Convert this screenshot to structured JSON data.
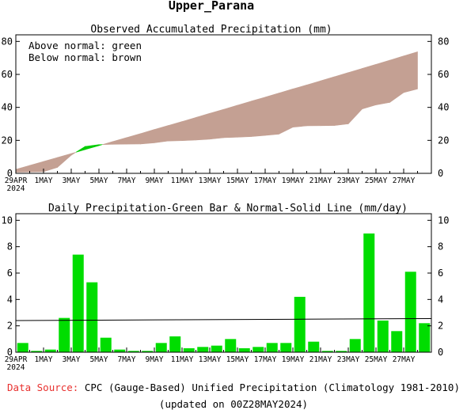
{
  "title": "Upper_Parana",
  "chart_data": [
    {
      "type": "area",
      "title": "Observed Accumulated Precipitation (mm)",
      "legend_lines": [
        "Above normal: green",
        "Below normal: brown"
      ],
      "ylim": [
        0,
        84
      ],
      "yticks": [
        0,
        20,
        40,
        60,
        80
      ],
      "x_tick_labels": [
        "29APR\n2024",
        "1MAY",
        "3MAY",
        "5MAY",
        "7MAY",
        "9MAY",
        "11MAY",
        "13MAY",
        "15MAY",
        "17MAY",
        "19MAY",
        "21MAY",
        "23MAY",
        "25MAY",
        "27MAY"
      ],
      "dates": [
        "29APR",
        "30APR",
        "1MAY",
        "2MAY",
        "3MAY",
        "4MAY",
        "5MAY",
        "6MAY",
        "7MAY",
        "8MAY",
        "9MAY",
        "10MAY",
        "11MAY",
        "12MAY",
        "13MAY",
        "14MAY",
        "15MAY",
        "16MAY",
        "17MAY",
        "18MAY",
        "19MAY",
        "20MAY",
        "21MAY",
        "22MAY",
        "23MAY",
        "24MAY",
        "25MAY",
        "26MAY",
        "27MAY",
        "28MAY"
      ],
      "series": [
        {
          "name": "Observed",
          "values": [
            0.7,
            0.8,
            1.0,
            3.6,
            11.0,
            16.3,
            17.4,
            17.6,
            17.7,
            17.8,
            18.5,
            19.6,
            19.8,
            20.2,
            20.7,
            21.6,
            21.9,
            22.3,
            23.0,
            23.8,
            28.0,
            28.8,
            28.9,
            29.0,
            30.0,
            39.0,
            41.5,
            43.0,
            49.0,
            51.2
          ]
        },
        {
          "name": "Normal",
          "values": [
            2.4,
            4.8,
            7.2,
            9.6,
            12.0,
            14.4,
            16.8,
            19.3,
            21.7,
            24.1,
            26.6,
            29.0,
            31.4,
            33.9,
            36.4,
            38.8,
            41.3,
            43.8,
            46.2,
            48.7,
            51.2,
            53.6,
            56.1,
            58.6,
            61.1,
            63.6,
            66.1,
            68.6,
            71.2,
            73.7
          ]
        }
      ],
      "colors": {
        "above": "#00cc00",
        "below": "#c4a093"
      }
    },
    {
      "type": "bar",
      "title": "Daily Precipitation-Green Bar & Normal-Solid Line (mm/day)",
      "ylim": [
        0,
        10.5
      ],
      "yticks": [
        0,
        2,
        4,
        6,
        8,
        10
      ],
      "x_tick_labels": [
        "29APR\n2024",
        "1MAY",
        "3MAY",
        "5MAY",
        "7MAY",
        "9MAY",
        "11MAY",
        "13MAY",
        "15MAY",
        "17MAY",
        "19MAY",
        "21MAY",
        "23MAY",
        "25MAY",
        "27MAY"
      ],
      "dates": [
        "29APR",
        "30APR",
        "1MAY",
        "2MAY",
        "3MAY",
        "4MAY",
        "5MAY",
        "6MAY",
        "7MAY",
        "8MAY",
        "9MAY",
        "10MAY",
        "11MAY",
        "12MAY",
        "13MAY",
        "14MAY",
        "15MAY",
        "16MAY",
        "17MAY",
        "18MAY",
        "19MAY",
        "20MAY",
        "21MAY",
        "22MAY",
        "23MAY",
        "24MAY",
        "25MAY",
        "26MAY",
        "27MAY",
        "28MAY"
      ],
      "values": [
        0.7,
        0.1,
        0.2,
        2.6,
        7.4,
        5.3,
        1.1,
        0.2,
        0.1,
        0.1,
        0.7,
        1.2,
        0.3,
        0.4,
        0.5,
        1.0,
        0.3,
        0.4,
        0.7,
        0.7,
        4.2,
        0.8,
        0.1,
        0.1,
        1.0,
        9.0,
        2.4,
        1.6,
        6.1,
        2.2
      ],
      "normal_line": [
        2.4,
        2.45,
        2.5,
        2.55
      ],
      "colors": {
        "bar": "#00dd00",
        "line": "#000000"
      }
    }
  ],
  "footer": {
    "source_label": "Data Source:",
    "source_text": "CPC (Gauge-Based) Unified Precipitation (Climatology 1981-2010)",
    "updated": "(updated on 00Z28MAY2024)"
  }
}
